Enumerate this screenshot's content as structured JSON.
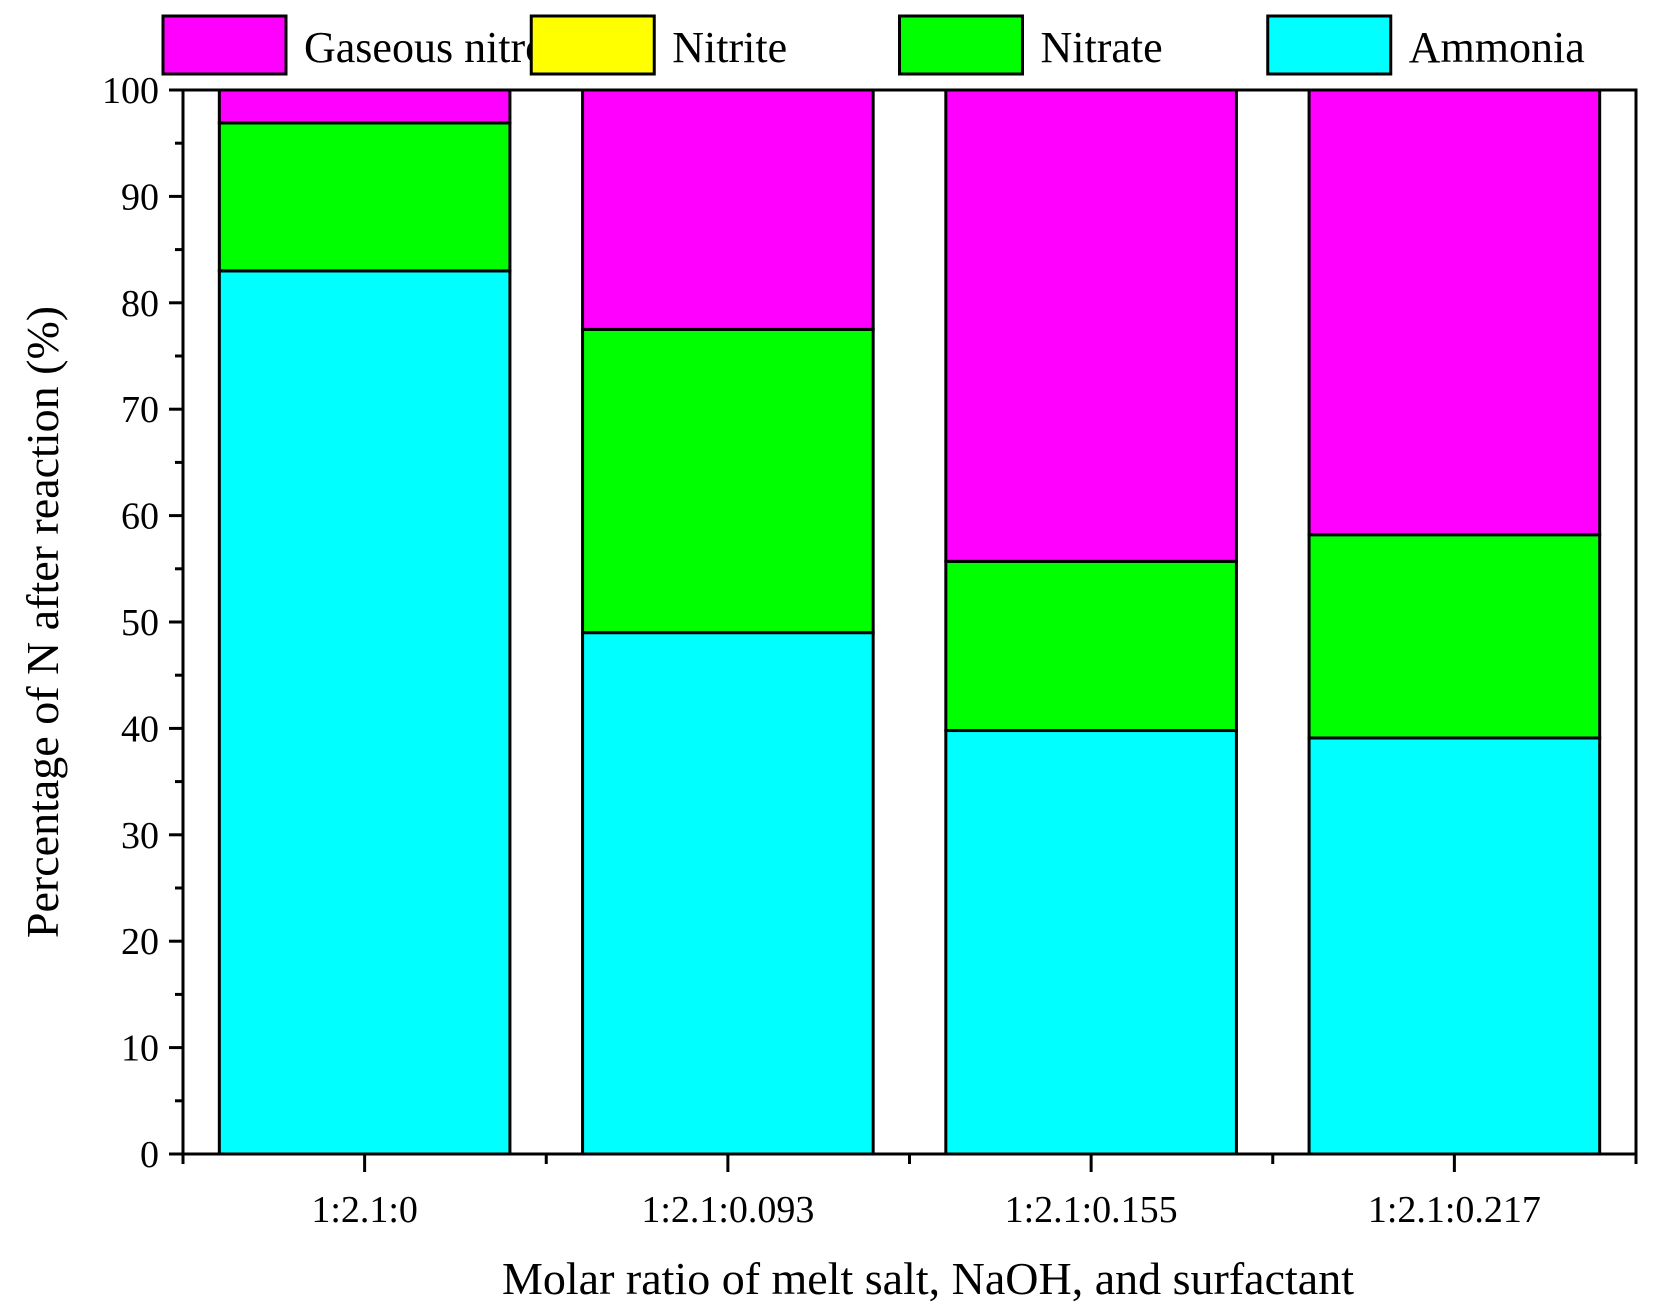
{
  "chart_data": {
    "type": "bar",
    "stacked": true,
    "title": "",
    "xlabel": "Molar ratio of melt salt, NaOH, and surfactant",
    "ylabel": "Percentage of N after reaction (%)",
    "ylim": [
      0,
      100
    ],
    "yticks": [
      0,
      10,
      20,
      30,
      40,
      50,
      60,
      70,
      80,
      90,
      100
    ],
    "categories": [
      "1:2.1:0",
      "1:2.1:0.093",
      "1:2.1:0.155",
      "1:2.1:0.217"
    ],
    "series": [
      {
        "name": "Ammonia",
        "color": "#00FFFF",
        "values": [
          83.0,
          49.0,
          39.8,
          39.1
        ]
      },
      {
        "name": "Nitrate",
        "color": "#00FF00",
        "values": [
          13.9,
          28.5,
          15.9,
          19.1
        ]
      },
      {
        "name": "Nitrite",
        "color": "#FFFF00",
        "values": [
          0,
          0,
          0,
          0
        ]
      },
      {
        "name": "Gaseous nitrogen",
        "color": "#FF00FF",
        "values": [
          3.1,
          22.5,
          44.3,
          41.8
        ]
      }
    ],
    "legend": {
      "position": "top",
      "order": [
        "Gaseous nitrogen",
        "Nitrite",
        "Nitrate",
        "Ammonia"
      ]
    }
  }
}
